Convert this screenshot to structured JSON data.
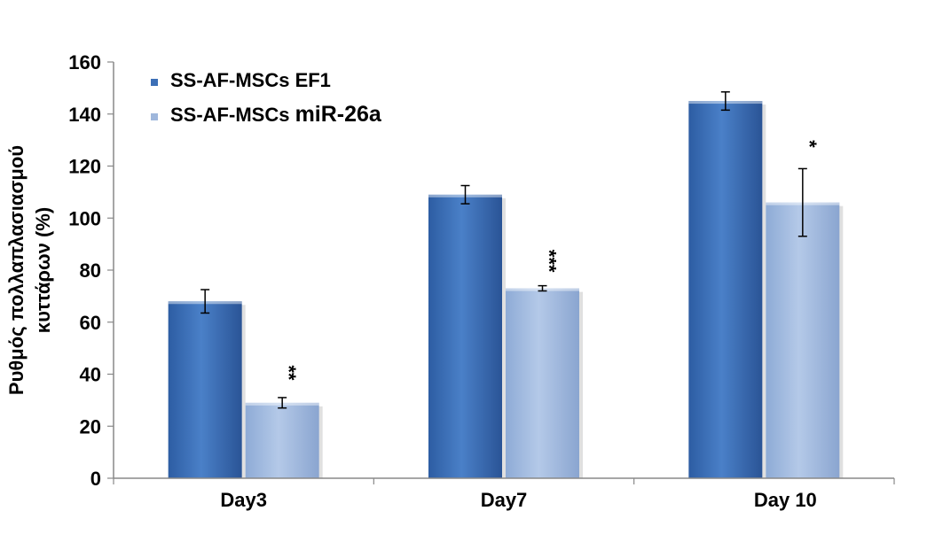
{
  "chart_data": {
    "type": "bar",
    "categories": [
      "Day3",
      "Day7",
      "Day 10"
    ],
    "series": [
      {
        "name_parts": [
          "SS-AF-MSCs ",
          "EF1"
        ],
        "values": [
          68,
          109,
          145
        ],
        "errors": [
          4.5,
          3.5,
          3.5
        ],
        "color": "#3c6fb6"
      },
      {
        "name_parts": [
          "SS-AF-MSCs ",
          "miR-26a"
        ],
        "values": [
          29,
          73,
          106
        ],
        "errors": [
          2,
          1,
          13
        ],
        "color": "#9fb7dc"
      }
    ],
    "significance": [
      "**",
      "***",
      "*"
    ],
    "ylabel_lines": [
      "Ρυθμός πολλαπλασιασμού",
      "κυττάρων (%)"
    ],
    "ylim": [
      0,
      160
    ],
    "yticks": [
      "0",
      "20",
      "40",
      "60",
      "80",
      "100",
      "120",
      "140",
      "160"
    ],
    "legend_position": "top-left",
    "grid": false
  }
}
